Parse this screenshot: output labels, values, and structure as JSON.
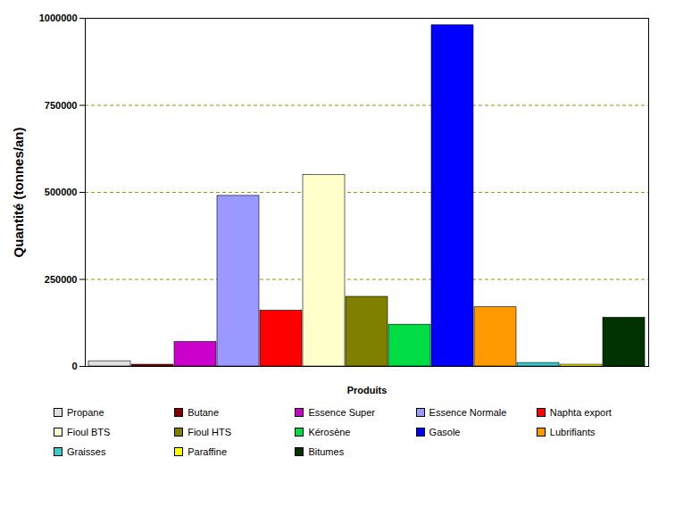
{
  "chart_data": {
    "type": "bar",
    "categories": [
      "Propane",
      "Butane",
      "Essence Super",
      "Essence Normale",
      "Naphta export",
      "Fioul BTS",
      "Fioul HTS",
      "Kérosène",
      "Gasole",
      "Lubrifiants",
      "Graisses",
      "Paraffine",
      "Bitumes"
    ],
    "values": [
      15000,
      5000,
      70000,
      490000,
      160000,
      550000,
      200000,
      120000,
      980000,
      170000,
      10000,
      5000,
      140000
    ],
    "colors": [
      "#e0e0e0",
      "#800000",
      "#cc00cc",
      "#9999ff",
      "#ff0000",
      "#ffffcc",
      "#808000",
      "#00dd44",
      "#0000ff",
      "#ff9900",
      "#33cccc",
      "#ffff00",
      "#003300"
    ],
    "x_label": "Produits",
    "y_label": "Quantité (tonnes/an)",
    "ylim": [
      0,
      1000000
    ],
    "yticks": [
      0,
      250000,
      500000,
      750000,
      1000000
    ],
    "grid": true,
    "legend": "bottom",
    "tick_labels": "y"
  }
}
